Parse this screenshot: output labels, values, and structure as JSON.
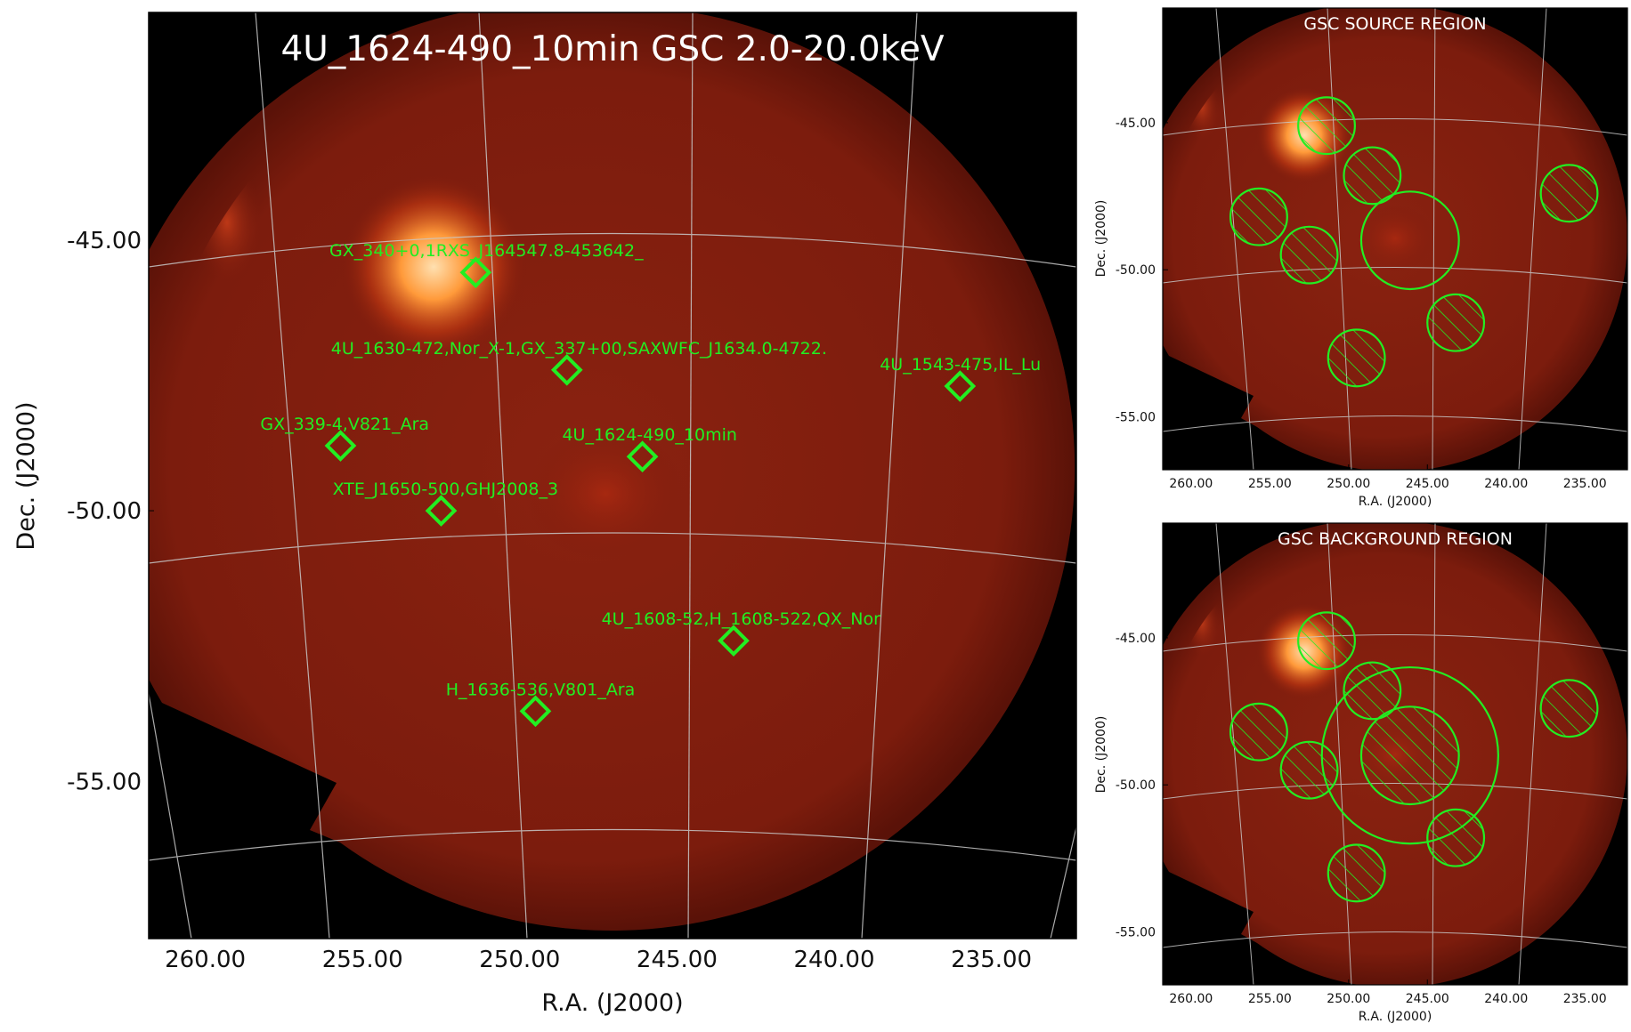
{
  "figure": {
    "colors": {
      "source_marker": "#22ee22",
      "grid": "#c8c8c8",
      "title_text": "#ffffff",
      "axis_text": "#111111",
      "sky_background": "#000000",
      "diffuse_emission": "#7a1a0c",
      "bright_source_core": "#ffd0a0"
    }
  },
  "chart_data": [
    {
      "id": "main",
      "type": "scatter",
      "subtype": "sky-image",
      "title": "4U_1624-490_10min GSC 2.0-20.0keV",
      "xlabel": "R.A. (J2000)",
      "ylabel": "Dec. (J2000)",
      "x_ticks": [
        "260.00",
        "255.00",
        "250.00",
        "245.00",
        "240.00",
        "235.00"
      ],
      "y_ticks": [
        "-45.00",
        "-50.00",
        "-55.00"
      ],
      "xlim": [
        261.8,
        232.3
      ],
      "ylim": [
        -57.9,
        -40.8
      ],
      "grid": true,
      "sources": [
        {
          "label": "GX_340+0,1RXS_J164547.8-453642_",
          "ra": 251.4,
          "dec": -45.6
        },
        {
          "label": "4U_1630-472,Nor_X-1,GX_337+00,SAXWFC_J1634.0-4722.",
          "ra": 248.5,
          "dec": -47.4
        },
        {
          "label": "4U_1543-475,IL_Lu",
          "ra": 236.0,
          "dec": -47.7
        },
        {
          "label": "GX_339-4,V821_Ara",
          "ra": 255.7,
          "dec": -48.8
        },
        {
          "label": "4U_1624-490_10min",
          "ra": 246.1,
          "dec": -49.0
        },
        {
          "label": "XTE_J1650-500,GHJ2008_3",
          "ra": 252.5,
          "dec": -50.0
        },
        {
          "label": "4U_1608-52,H_1608-522,QX_Nor",
          "ra": 243.2,
          "dec": -52.4
        },
        {
          "label": "H_1636-536,V801_Ara",
          "ra": 249.5,
          "dec": -53.7
        }
      ]
    },
    {
      "id": "source_region",
      "type": "scatter",
      "subtype": "sky-image",
      "title": "GSC SOURCE REGION",
      "xlabel": "R.A. (J2000)",
      "ylabel": "Dec. (J2000)",
      "x_ticks": [
        "260.00",
        "255.00",
        "250.00",
        "245.00",
        "240.00",
        "235.00"
      ],
      "y_ticks": [
        "-45.00",
        "-50.00",
        "-55.00"
      ],
      "grid": true,
      "source_circle": {
        "ra": 246.1,
        "dec": -49.0,
        "radius_deg": 3.1
      },
      "excluded_circles": [
        {
          "ra": 251.4,
          "dec": -45.1,
          "radius_deg": 1.8
        },
        {
          "ra": 248.5,
          "dec": -46.8,
          "radius_deg": 1.8
        },
        {
          "ra": 255.7,
          "dec": -48.2,
          "radius_deg": 1.8
        },
        {
          "ra": 252.5,
          "dec": -49.5,
          "radius_deg": 1.8
        },
        {
          "ra": 236.0,
          "dec": -47.4,
          "radius_deg": 1.8
        },
        {
          "ra": 243.2,
          "dec": -51.8,
          "radius_deg": 1.8
        },
        {
          "ra": 249.5,
          "dec": -53.0,
          "radius_deg": 1.8
        }
      ]
    },
    {
      "id": "background_region",
      "type": "scatter",
      "subtype": "sky-image",
      "title": "GSC BACKGROUND REGION",
      "xlabel": "R.A. (J2000)",
      "ylabel": "Dec. (J2000)",
      "x_ticks": [
        "260.00",
        "255.00",
        "250.00",
        "245.00",
        "240.00",
        "235.00"
      ],
      "y_ticks": [
        "-45.00",
        "-50.00",
        "-55.00"
      ],
      "grid": true,
      "background_annulus": {
        "ra": 246.1,
        "dec": -49.0,
        "inner_radius_deg": 3.1,
        "outer_radius_deg": 5.6
      },
      "excluded_circles": [
        {
          "ra": 251.4,
          "dec": -45.1,
          "radius_deg": 1.8
        },
        {
          "ra": 248.5,
          "dec": -46.8,
          "radius_deg": 1.8
        },
        {
          "ra": 255.7,
          "dec": -48.2,
          "radius_deg": 1.8
        },
        {
          "ra": 252.5,
          "dec": -49.5,
          "radius_deg": 1.8
        },
        {
          "ra": 236.0,
          "dec": -47.4,
          "radius_deg": 1.8
        },
        {
          "ra": 243.2,
          "dec": -51.8,
          "radius_deg": 1.8
        },
        {
          "ra": 249.5,
          "dec": -53.0,
          "radius_deg": 1.8
        }
      ]
    }
  ]
}
